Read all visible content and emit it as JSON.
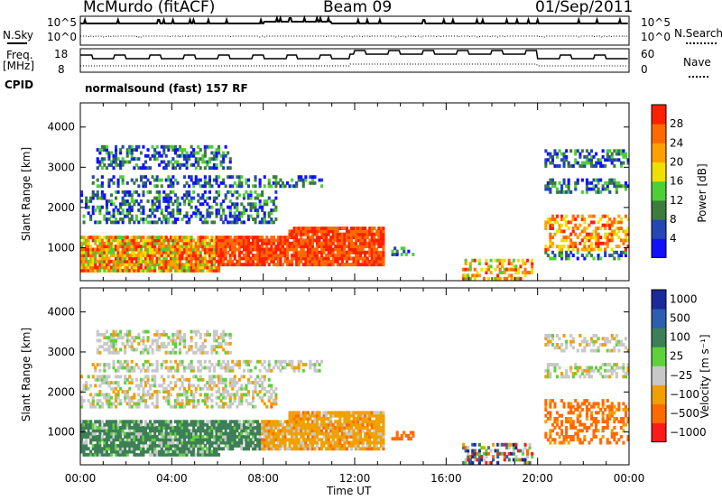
{
  "header": {
    "station": "McMurdo (fitACF)",
    "beam": "Beam 09",
    "date": "01/Sep/2011"
  },
  "summary_panels": {
    "nsky_label": "N.Sky",
    "nsky_ticks": [
      "10^5",
      "10^0"
    ],
    "nsearch_label": "N.Search",
    "nsearch_ticks": [
      "10^5",
      "10^0"
    ],
    "freq_label_1": "Freq.",
    "freq_label_2": "[MHz]",
    "freq_ticks": [
      "18",
      "8"
    ],
    "nave_label": "Nave",
    "nave_ticks": [
      "60",
      "0"
    ],
    "cpid_label": "CPID",
    "cpid_value": "normalsound (fast) 157 RF"
  },
  "chart_data": [
    {
      "type": "heatmap",
      "name": "power",
      "ylabel": "Slant Range [km]",
      "yticks": [
        1000,
        2000,
        3000,
        4000
      ],
      "ylim": [
        180,
        4600
      ],
      "xlim": [
        0,
        24
      ],
      "colorbar_label": "Power [dB]",
      "colorbar_ticks": [
        "4",
        "8",
        "12",
        "16",
        "20",
        "24",
        "28"
      ],
      "colors": [
        "#1010ff",
        "#2346b4",
        "#3c7c3c",
        "#4fcf36",
        "#f0e000",
        "#ffa000",
        "#ff6a00",
        "#ff2000"
      ]
    },
    {
      "type": "heatmap",
      "name": "velocity",
      "ylabel": "Slant Range [km]",
      "yticks": [
        1000,
        2000,
        3000,
        4000
      ],
      "ylim": [
        180,
        4600
      ],
      "xlim": [
        0,
        24
      ],
      "xlabel": "Time UT",
      "xticks": [
        "00:00",
        "04:00",
        "08:00",
        "12:00",
        "16:00",
        "20:00",
        "00:00"
      ],
      "colorbar_label": "Velocity [m s⁻¹]",
      "colorbar_ticks": [
        "1000",
        "500",
        "100",
        "25",
        "−25",
        "−100",
        "−500",
        "−1000"
      ],
      "colors": [
        "#1a2a9a",
        "#2d5fb0",
        "#3d7f56",
        "#5fd13c",
        "#c8c8c8",
        "#f0a000",
        "#ff6a00",
        "#ff1a1a"
      ]
    }
  ]
}
